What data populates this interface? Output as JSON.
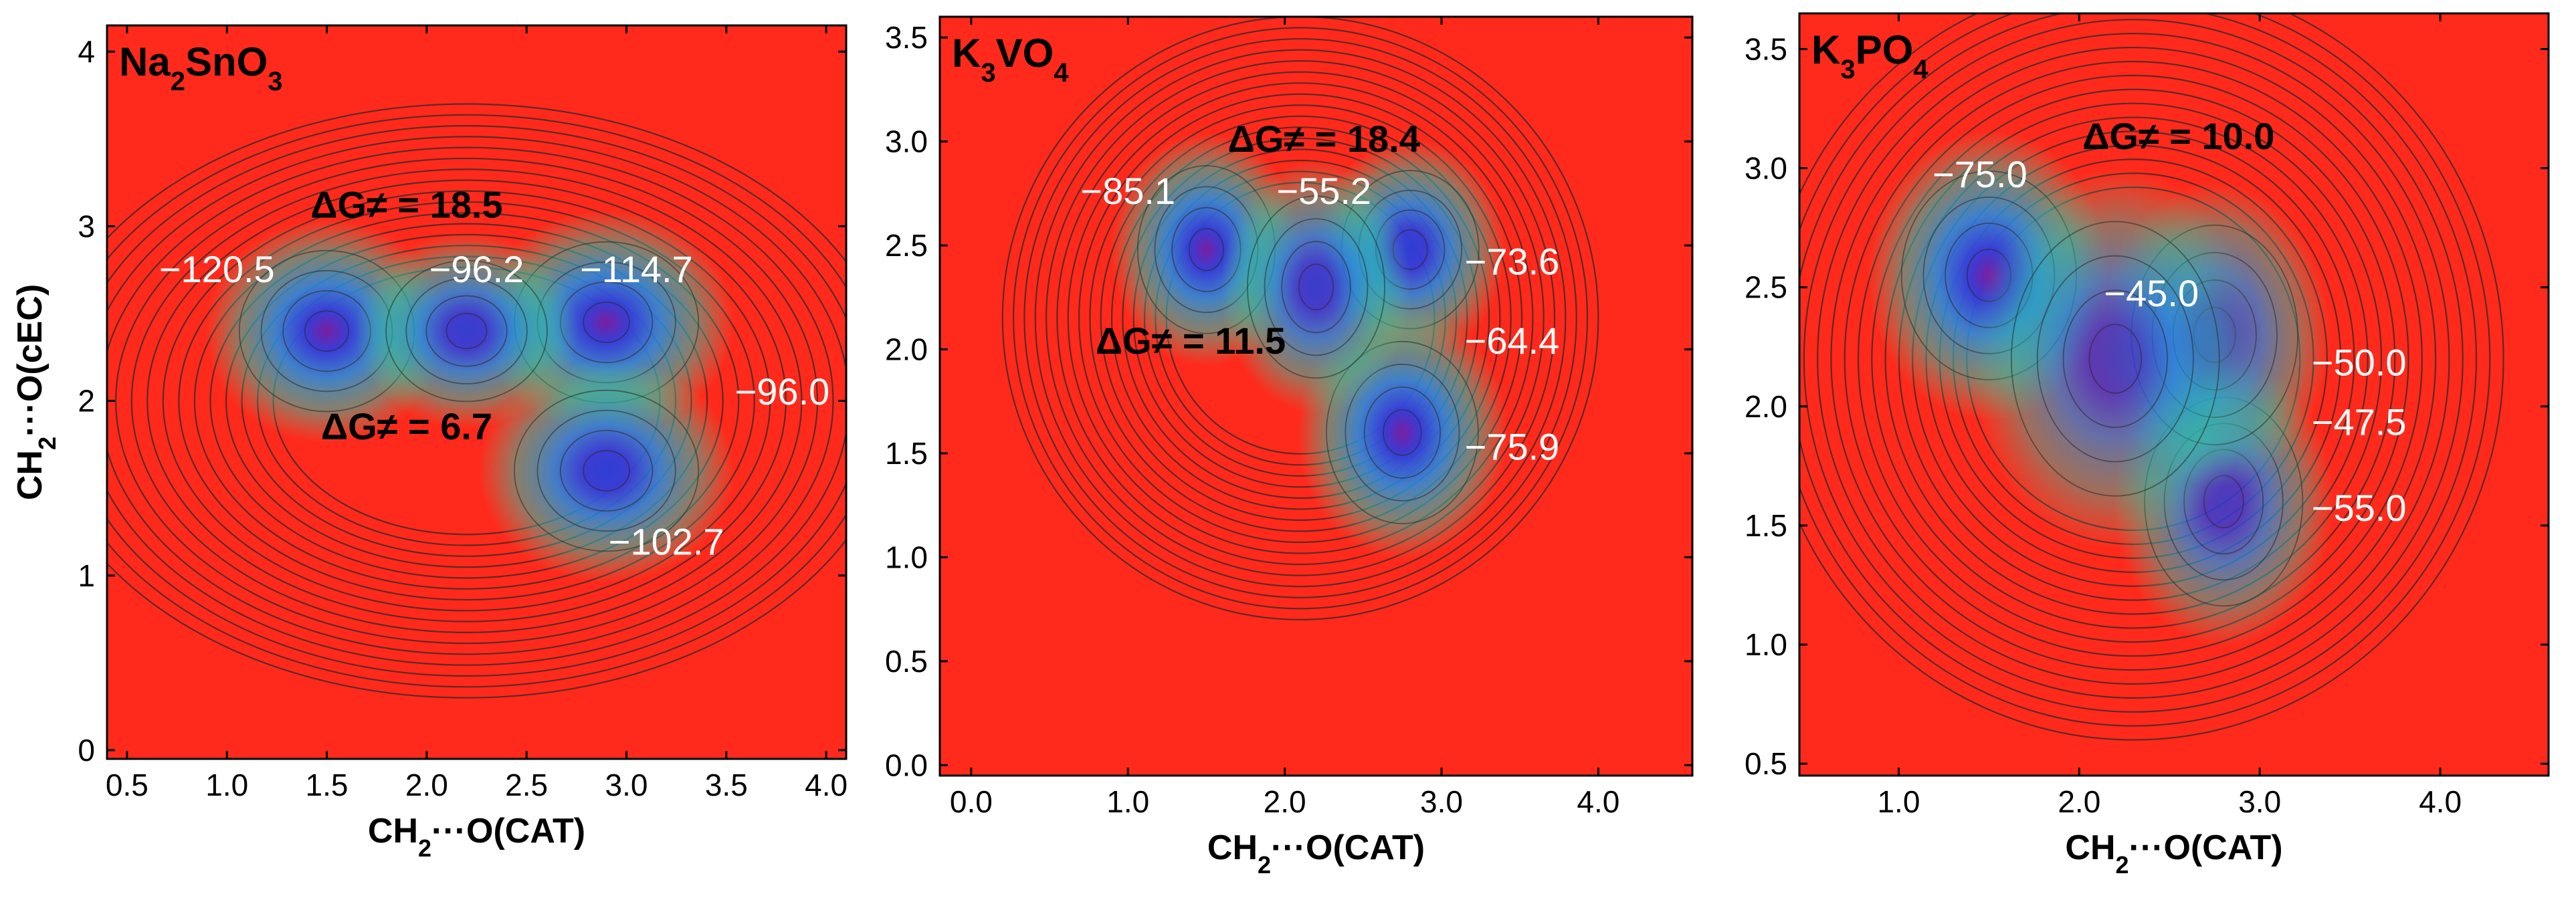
{
  "chart_data": [
    {
      "type": "contour",
      "title": "Na2SnO3",
      "title_parts": [
        {
          "t": "Na"
        },
        {
          "t": "2",
          "sub": true
        },
        {
          "t": "SnO"
        },
        {
          "t": "3",
          "sub": true
        }
      ],
      "xlabel": "CH2···O(CAT)",
      "ylabel": "CH2···O(cEC)",
      "xlim": [
        0.4,
        4.1
      ],
      "ylim": [
        -0.05,
        4.15
      ],
      "xticks": [
        "0.5",
        "1.0",
        "1.5",
        "2.0",
        "2.5",
        "3.0",
        "3.5",
        "4.0"
      ],
      "yticks": [
        "0",
        "1",
        "2",
        "3",
        "4"
      ],
      "minima": [
        {
          "x": 1.5,
          "y": 2.4,
          "depth": 1.0,
          "sx": 0.38,
          "sy": 0.4
        },
        {
          "x": 2.9,
          "y": 2.45,
          "depth": 0.95,
          "sx": 0.4,
          "sy": 0.4
        },
        {
          "x": 2.9,
          "y": 1.6,
          "depth": 0.85,
          "sx": 0.4,
          "sy": 0.4
        },
        {
          "x": 2.2,
          "y": 2.4,
          "depth": 0.8,
          "sx": 0.35,
          "sy": 0.35
        }
      ],
      "annotations": [
        {
          "text": "−120.5",
          "x": 0.95,
          "y": 2.68,
          "kind": "energy"
        },
        {
          "text": "−96.2",
          "x": 2.25,
          "y": 2.68,
          "kind": "energy"
        },
        {
          "text": "−114.7",
          "x": 3.05,
          "y": 2.68,
          "kind": "energy"
        },
        {
          "text": "−96.0",
          "x": 3.78,
          "y": 1.98,
          "kind": "energy"
        },
        {
          "text": "−102.7",
          "x": 3.2,
          "y": 1.12,
          "kind": "energy"
        },
        {
          "text": "ΔG≠ = 18.5",
          "x": 1.9,
          "y": 3.05,
          "kind": "barrier"
        },
        {
          "text": "ΔG≠ = 6.7",
          "x": 1.9,
          "y": 1.78,
          "kind": "barrier"
        }
      ]
    },
    {
      "type": "contour",
      "title": "K3VO4",
      "title_parts": [
        {
          "t": "K"
        },
        {
          "t": "3",
          "sub": true
        },
        {
          "t": "VO"
        },
        {
          "t": "4",
          "sub": true
        }
      ],
      "xlabel": "CH2···O(CAT)",
      "ylabel": "",
      "xlim": [
        -0.2,
        4.6
      ],
      "ylim": [
        -0.05,
        3.6
      ],
      "xticks": [
        "0.0",
        "1.0",
        "2.0",
        "3.0",
        "4.0"
      ],
      "yticks": [
        "0.0",
        "0.5",
        "1.0",
        "1.5",
        "2.0",
        "2.5",
        "3.0",
        "3.5"
      ],
      "minima": [
        {
          "x": 1.5,
          "y": 2.48,
          "depth": 1.0,
          "sx": 0.38,
          "sy": 0.35
        },
        {
          "x": 2.8,
          "y": 2.48,
          "depth": 0.85,
          "sx": 0.38,
          "sy": 0.33
        },
        {
          "x": 2.75,
          "y": 1.6,
          "depth": 0.95,
          "sx": 0.42,
          "sy": 0.38
        },
        {
          "x": 2.2,
          "y": 2.3,
          "depth": 0.75,
          "sx": 0.38,
          "sy": 0.38
        }
      ],
      "annotations": [
        {
          "text": "−85.1",
          "x": 1.0,
          "y": 2.7,
          "kind": "energy"
        },
        {
          "text": "−55.2",
          "x": 2.25,
          "y": 2.7,
          "kind": "energy"
        },
        {
          "text": "−73.6",
          "x": 3.45,
          "y": 2.36,
          "kind": "energy"
        },
        {
          "text": "−64.4",
          "x": 3.45,
          "y": 1.98,
          "kind": "energy"
        },
        {
          "text": "−75.9",
          "x": 3.45,
          "y": 1.47,
          "kind": "energy"
        },
        {
          "text": "ΔG≠ = 18.4",
          "x": 2.25,
          "y": 2.95,
          "kind": "barrier"
        },
        {
          "text": "ΔG≠ = 11.5",
          "x": 1.4,
          "y": 1.98,
          "kind": "barrier"
        }
      ]
    },
    {
      "type": "contour",
      "title": "K3PO4",
      "title_parts": [
        {
          "t": "K"
        },
        {
          "t": "3",
          "sub": true
        },
        {
          "t": "PO"
        },
        {
          "t": "4",
          "sub": true
        }
      ],
      "xlabel": "CH2···O(CAT)",
      "ylabel": "",
      "xlim": [
        0.45,
        4.6
      ],
      "ylim": [
        0.45,
        3.65
      ],
      "xticks": [
        "1.0",
        "2.0",
        "3.0",
        "4.0"
      ],
      "yticks": [
        "0.5",
        "1.0",
        "1.5",
        "2.0",
        "2.5",
        "3.0",
        "3.5"
      ],
      "minima": [
        {
          "x": 1.5,
          "y": 2.55,
          "depth": 1.0,
          "sx": 0.42,
          "sy": 0.38
        },
        {
          "x": 2.8,
          "y": 1.6,
          "depth": 0.6,
          "sx": 0.38,
          "sy": 0.38
        },
        {
          "x": 2.75,
          "y": 2.3,
          "depth": 0.55,
          "sx": 0.4,
          "sy": 0.4
        },
        {
          "x": 2.2,
          "y": 2.2,
          "depth": 0.5,
          "sx": 0.5,
          "sy": 0.5
        }
      ],
      "annotations": [
        {
          "text": "−75.0",
          "x": 1.45,
          "y": 2.92,
          "kind": "energy"
        },
        {
          "text": "−45.0",
          "x": 2.4,
          "y": 2.42,
          "kind": "energy"
        },
        {
          "text": "−50.0",
          "x": 3.55,
          "y": 2.13,
          "kind": "energy"
        },
        {
          "text": "−47.5",
          "x": 3.55,
          "y": 1.88,
          "kind": "energy"
        },
        {
          "text": "−55.0",
          "x": 3.55,
          "y": 1.52,
          "kind": "energy"
        },
        {
          "text": "ΔG≠ = 10.0",
          "x": 2.55,
          "y": 3.08,
          "kind": "barrier"
        }
      ]
    }
  ],
  "colors": {
    "background_red": "#ff2a1c",
    "label_white": "#ffffff",
    "axis_black": "#000000"
  }
}
